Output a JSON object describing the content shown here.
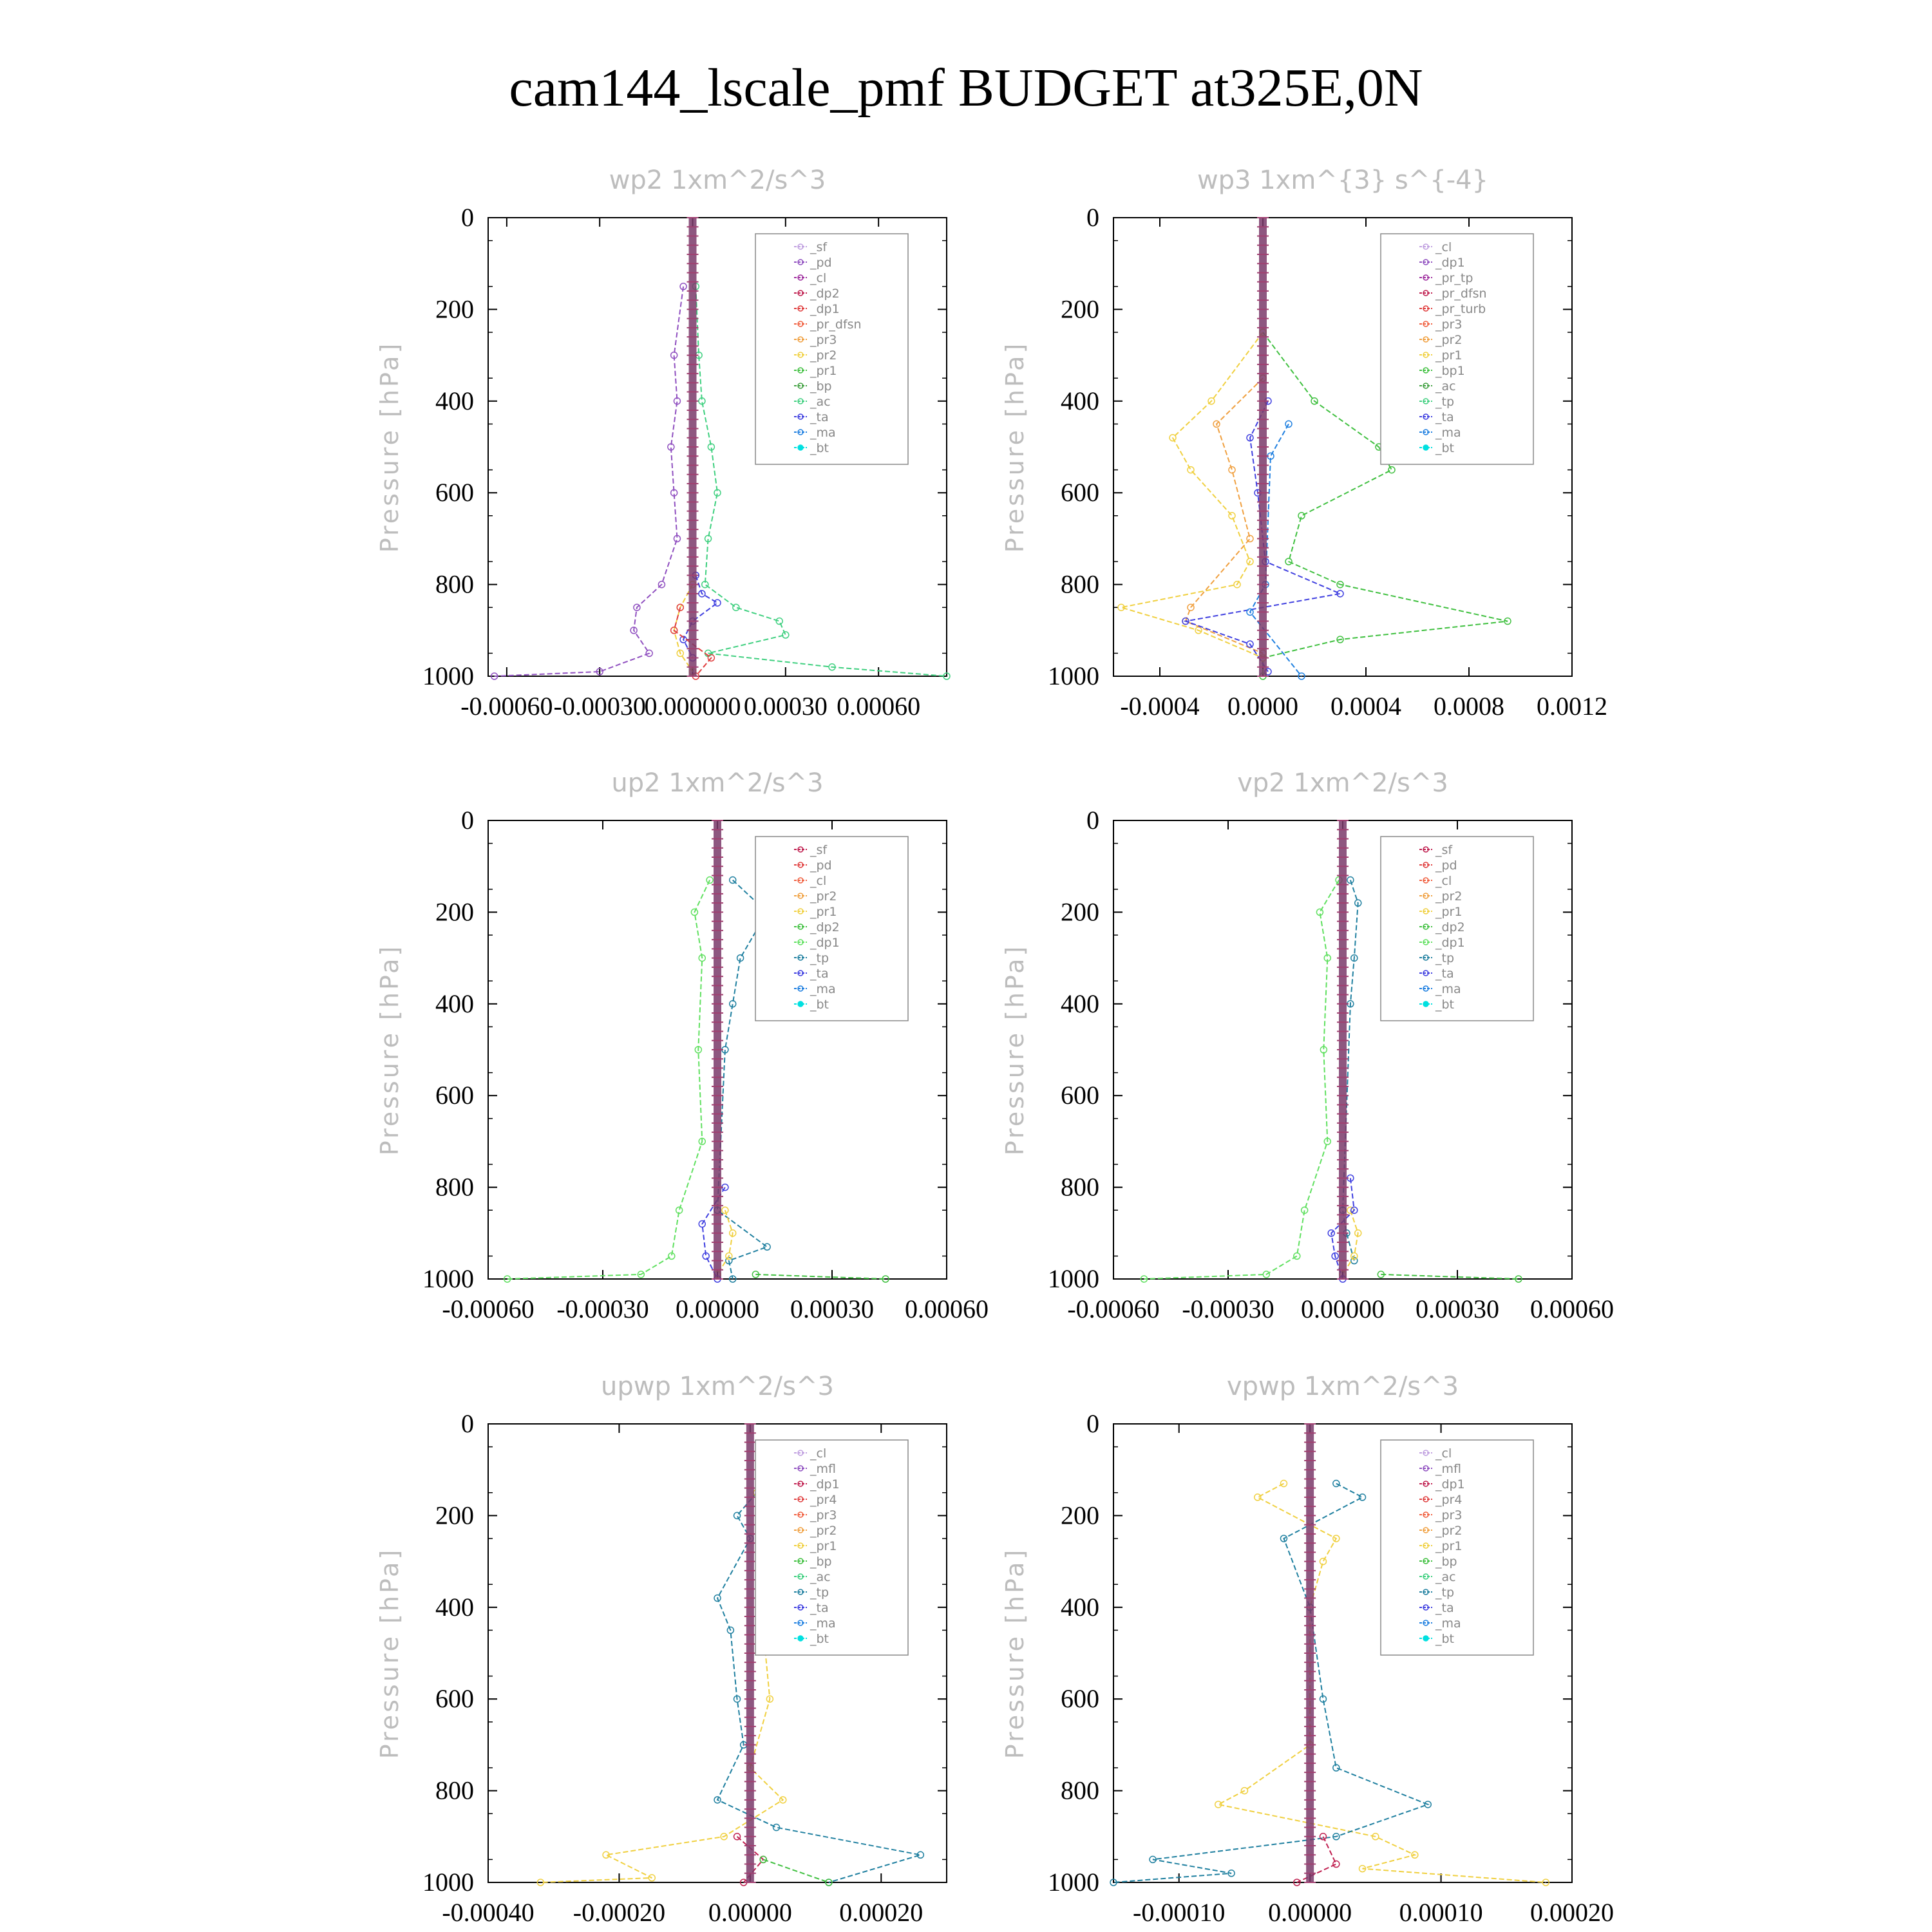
{
  "title": "cam144_lscale_pmf  BUDGET at325E,0N",
  "chart_data": [
    {
      "type": "line",
      "title": "wp2  1xm^2/s^3",
      "ylabel": "Pressure [hPa]",
      "ylim": [
        1000,
        0
      ],
      "xlim": [
        -0.00066,
        0.00082
      ],
      "xticks": [
        -0.0006,
        -0.0003,
        0.0,
        0.0003,
        0.0006
      ],
      "xtick_labels": [
        "-0.00060",
        "-0.00030",
        "0.000000",
        "0.00030",
        "0.00060"
      ],
      "yticks": [
        0,
        200,
        400,
        600,
        800,
        1000
      ],
      "legend": [
        "_sf",
        "_pd",
        "_cl",
        "_dp2",
        "_dp1",
        "_pr_dfsn",
        "_pr3",
        "_pr2",
        "_pr1",
        "_bp",
        "_ac",
        "_ta",
        "_ma",
        "_bt"
      ],
      "colors": [
        "#c0a0e0",
        "#9050c0",
        "#a030a0",
        "#c02050",
        "#e04040",
        "#f06040",
        "#f0a040",
        "#f0d040",
        "#40c040",
        "#40a040",
        "#40d080",
        "#4040e0",
        "#2080e0",
        "#00e0e0"
      ],
      "series": [
        {
          "name": "_pd",
          "p": [
            150,
            300,
            400,
            500,
            600,
            700,
            800,
            850,
            900,
            950,
            990,
            1000
          ],
          "x": [
            -3e-05,
            -6e-05,
            -5e-05,
            -7e-05,
            -6e-05,
            -5e-05,
            -0.0001,
            -0.00018,
            -0.00019,
            -0.00014,
            -0.0003,
            -0.00064
          ]
        },
        {
          "name": "_ac",
          "p": [
            150,
            300,
            400,
            500,
            600,
            700,
            800,
            850,
            880,
            910,
            950,
            980,
            1000
          ],
          "x": [
            1e-05,
            2e-05,
            3e-05,
            6e-05,
            8e-05,
            5e-05,
            4e-05,
            0.00014,
            0.00028,
            0.0003,
            5e-05,
            0.00045,
            0.00082
          ]
        },
        {
          "name": "_pr2",
          "p": [
            800,
            850,
            900,
            950,
            990
          ],
          "x": [
            0.0,
            -4e-05,
            -6e-05,
            -4e-05,
            0.0
          ]
        },
        {
          "name": "_ta",
          "p": [
            780,
            820,
            840,
            880,
            920,
            960
          ],
          "x": [
            1e-05,
            3e-05,
            8e-05,
            0.0,
            -3e-05,
            0.0
          ]
        },
        {
          "name": "_dp1",
          "p": [
            850,
            900,
            960,
            1000
          ],
          "x": [
            -4e-05,
            -6e-05,
            6e-05,
            1e-05
          ]
        }
      ]
    },
    {
      "type": "line",
      "title": "wp3  1xm^{3} s^{-4}",
      "ylabel": "Pressure [hPa]",
      "ylim": [
        1000,
        0
      ],
      "xlim": [
        -0.00058,
        0.0012
      ],
      "xticks": [
        -0.0004,
        0.0,
        0.0004,
        0.0008,
        0.0012
      ],
      "xtick_labels": [
        "-0.0004",
        "0.0000",
        "0.0004",
        "0.0008",
        "0.0012"
      ],
      "yticks": [
        0,
        200,
        400,
        600,
        800,
        1000
      ],
      "legend": [
        "_cl",
        "_dp1",
        "_pr_tp",
        "_pr_dfsn",
        "_pr_turb",
        "_pr3",
        "_pr2",
        "_pr1",
        "_bp1",
        "_ac",
        "_tp",
        "_ta",
        "_ma",
        "_bt"
      ],
      "colors": [
        "#c0a0e0",
        "#9050c0",
        "#a030a0",
        "#c02050",
        "#e04040",
        "#f06040",
        "#f0a040",
        "#f0d040",
        "#40c040",
        "#40a040",
        "#40d080",
        "#4040e0",
        "#2080e0",
        "#00e0e0"
      ],
      "series": [
        {
          "name": "_bp1",
          "p": [
            250,
            400,
            500,
            550,
            650,
            750,
            800,
            880,
            920,
            960,
            1000
          ],
          "x": [
            0.0,
            0.0002,
            0.00045,
            0.0005,
            0.00015,
            0.0001,
            0.0003,
            0.00095,
            0.0003,
            0.0,
            0.0
          ]
        },
        {
          "name": "_pr1",
          "p": [
            250,
            400,
            480,
            550,
            650,
            750,
            800,
            850,
            900,
            960
          ],
          "x": [
            0.0,
            -0.0002,
            -0.00035,
            -0.00028,
            -0.00012,
            -5e-05,
            -0.0001,
            -0.00055,
            -0.00025,
            0.0
          ]
        },
        {
          "name": "_pr2",
          "p": [
            350,
            450,
            550,
            700,
            850,
            880,
            950
          ],
          "x": [
            0.0,
            -0.00018,
            -0.00012,
            -5e-05,
            -0.00028,
            -0.0003,
            0.0
          ]
        },
        {
          "name": "_ta",
          "p": [
            400,
            480,
            600,
            750,
            820,
            880,
            930,
            990
          ],
          "x": [
            2e-05,
            -5e-05,
            -2e-05,
            1e-05,
            0.0003,
            -0.0003,
            -5e-05,
            2e-05
          ]
        },
        {
          "name": "_ma",
          "p": [
            450,
            520,
            800,
            860,
            1000
          ],
          "x": [
            0.0001,
            3e-05,
            1e-05,
            -5e-05,
            0.00015
          ]
        }
      ]
    },
    {
      "type": "line",
      "title": "up2  1xm^2/s^3",
      "ylabel": "Pressure [hPa]",
      "ylim": [
        1000,
        0
      ],
      "xlim": [
        -0.0006,
        0.0006
      ],
      "xticks": [
        -0.0006,
        -0.0003,
        0.0,
        0.0003,
        0.0006
      ],
      "xtick_labels": [
        "-0.00060",
        "-0.00030",
        "0.00000",
        "0.00030",
        "0.00060"
      ],
      "yticks": [
        0,
        200,
        400,
        600,
        800,
        1000
      ],
      "legend": [
        "_sf",
        "_pd",
        "_cl",
        "_pr2",
        "_pr1",
        "_dp2",
        "_dp1",
        "_tp",
        "_ta",
        "_ma",
        "_bt"
      ],
      "colors": [
        "#c02050",
        "#e04040",
        "#f06040",
        "#f0a040",
        "#f0d040",
        "#40c040",
        "#60e060",
        "#2080a0",
        "#4040e0",
        "#2080e0",
        "#00e0e0"
      ],
      "series": [
        {
          "name": "_dp1",
          "p": [
            130,
            200,
            300,
            500,
            700,
            850,
            950,
            990,
            1000
          ],
          "x": [
            -2e-05,
            -6e-05,
            -4e-05,
            -5e-05,
            -4e-05,
            -0.0001,
            -0.00012,
            -0.0002,
            -0.00055
          ]
        },
        {
          "name": "_tp",
          "p": [
            130,
            200,
            300,
            400,
            500,
            850,
            930,
            960,
            1000
          ],
          "x": [
            4e-05,
            0.00013,
            6e-05,
            4e-05,
            2e-05,
            0.0,
            0.00013,
            3e-05,
            4e-05
          ]
        },
        {
          "name": "_pr1",
          "p": [
            850,
            900,
            950,
            990
          ],
          "x": [
            2e-05,
            4e-05,
            3e-05,
            0.0
          ]
        },
        {
          "name": "_ta",
          "p": [
            800,
            880,
            950,
            1000
          ],
          "x": [
            2e-05,
            -4e-05,
            -3e-05,
            0.0
          ]
        },
        {
          "name": "_dp2",
          "p": [
            990,
            1000
          ],
          "x": [
            0.0001,
            0.00044
          ]
        }
      ]
    },
    {
      "type": "line",
      "title": "vp2  1xm^2/s^3",
      "ylabel": "Pressure [hPa]",
      "ylim": [
        1000,
        0
      ],
      "xlim": [
        -0.0006,
        0.0006
      ],
      "xticks": [
        -0.0006,
        -0.0003,
        0.0,
        0.0003,
        0.0006
      ],
      "xtick_labels": [
        "-0.00060",
        "-0.00030",
        "0.00000",
        "0.00030",
        "0.00060"
      ],
      "yticks": [
        0,
        200,
        400,
        600,
        800,
        1000
      ],
      "legend": [
        "_sf",
        "_pd",
        "_cl",
        "_pr2",
        "_pr1",
        "_dp2",
        "_dp1",
        "_tp",
        "_ta",
        "_ma",
        "_bt"
      ],
      "colors": [
        "#c02050",
        "#e04040",
        "#f06040",
        "#f0a040",
        "#f0d040",
        "#40c040",
        "#60e060",
        "#2080a0",
        "#4040e0",
        "#2080e0",
        "#00e0e0"
      ],
      "series": [
        {
          "name": "_dp1",
          "p": [
            130,
            200,
            300,
            500,
            700,
            850,
            950,
            990,
            1000
          ],
          "x": [
            -1e-05,
            -6e-05,
            -4e-05,
            -5e-05,
            -4e-05,
            -0.0001,
            -0.00012,
            -0.0002,
            -0.00052
          ]
        },
        {
          "name": "_tp",
          "p": [
            130,
            180,
            300,
            400,
            850,
            900,
            960
          ],
          "x": [
            2e-05,
            4e-05,
            3e-05,
            2e-05,
            0.0,
            1e-05,
            3e-05
          ]
        },
        {
          "name": "_pr1",
          "p": [
            850,
            900,
            950,
            990
          ],
          "x": [
            2e-05,
            4e-05,
            3e-05,
            0.0
          ]
        },
        {
          "name": "_ta",
          "p": [
            780,
            850,
            900,
            950,
            1000
          ],
          "x": [
            2e-05,
            3e-05,
            -3e-05,
            -2e-05,
            0.0
          ]
        },
        {
          "name": "_dp2",
          "p": [
            990,
            1000
          ],
          "x": [
            0.0001,
            0.00046
          ]
        }
      ]
    },
    {
      "type": "line",
      "title": "upwp  1xm^2/s^3",
      "ylabel": "Pressure [hPa]",
      "ylim": [
        1000,
        0
      ],
      "xlim": [
        -0.0004,
        0.0003
      ],
      "xticks": [
        -0.0004,
        -0.0002,
        0.0,
        0.0002
      ],
      "xtick_labels": [
        "-0.00040",
        "-0.00020",
        "0.00000",
        "0.00020"
      ],
      "yticks": [
        0,
        200,
        400,
        600,
        800,
        1000
      ],
      "legend": [
        "_cl",
        "_mfl",
        "_dp1",
        "_pr4",
        "_pr3",
        "_pr2",
        "_pr1",
        "_bp",
        "_ac",
        "_tp",
        "_ta",
        "_ma",
        "_bt"
      ],
      "colors": [
        "#c0a0e0",
        "#9050c0",
        "#c02050",
        "#e04040",
        "#f06040",
        "#f0a040",
        "#f0d040",
        "#40c040",
        "#40d080",
        "#2080a0",
        "#4040e0",
        "#2080e0",
        "#00e0e0"
      ],
      "series": [
        {
          "name": "_tp",
          "p": [
            150,
            200,
            250,
            380,
            450,
            600,
            700,
            820,
            880,
            940,
            1000
          ],
          "x": [
            1e-05,
            -2e-05,
            0.0,
            -5e-05,
            -3e-05,
            -2e-05,
            -1e-05,
            -5e-05,
            4e-05,
            0.00026,
            0.00012
          ]
        },
        {
          "name": "_pr1",
          "p": [
            150,
            250,
            350,
            450,
            600,
            750,
            820,
            900,
            940,
            990,
            1000
          ],
          "x": [
            1e-05,
            3e-05,
            4e-05,
            2e-05,
            3e-05,
            0.0,
            5e-05,
            -4e-05,
            -0.00022,
            -0.00015,
            -0.00032
          ]
        },
        {
          "name": "_dp1",
          "p": [
            900,
            950,
            1000
          ],
          "x": [
            -2e-05,
            2e-05,
            -1e-05
          ]
        },
        {
          "name": "_bp",
          "p": [
            950,
            1000
          ],
          "x": [
            2e-05,
            0.00012
          ]
        }
      ]
    },
    {
      "type": "line",
      "title": "vpwp  1xm^2/s^3",
      "ylabel": "Pressure [hPa]",
      "ylim": [
        1000,
        0
      ],
      "xlim": [
        -0.00015,
        0.0002
      ],
      "xticks": [
        -0.0001,
        0.0,
        0.0001,
        0.0002
      ],
      "xtick_labels": [
        "-0.00010",
        "0.00000",
        "0.00010",
        "0.00020"
      ],
      "yticks": [
        0,
        200,
        400,
        600,
        800,
        1000
      ],
      "legend": [
        "_cl",
        "_mfl",
        "_dp1",
        "_pr4",
        "_pr3",
        "_pr2",
        "_pr1",
        "_bp",
        "_ac",
        "_tp",
        "_ta",
        "_ma",
        "_bt"
      ],
      "colors": [
        "#c0a0e0",
        "#9050c0",
        "#c02050",
        "#e04040",
        "#f06040",
        "#f0a040",
        "#f0d040",
        "#40c040",
        "#40d080",
        "#2080a0",
        "#4040e0",
        "#2080e0",
        "#00e0e0"
      ],
      "series": [
        {
          "name": "_pr1",
          "p": [
            130,
            160,
            250,
            300,
            400,
            700,
            800,
            830,
            900,
            940,
            970,
            1000
          ],
          "x": [
            -2e-05,
            -4e-05,
            2e-05,
            1e-05,
            0.0,
            0.0,
            -5e-05,
            -7e-05,
            5e-05,
            8e-05,
            4e-05,
            0.00018
          ]
        },
        {
          "name": "_tp",
          "p": [
            130,
            160,
            250,
            400,
            600,
            750,
            830,
            900,
            950,
            980,
            1000
          ],
          "x": [
            2e-05,
            4e-05,
            -2e-05,
            0.0,
            1e-05,
            2e-05,
            9e-05,
            2e-05,
            -0.00012,
            -6e-05,
            -0.00015
          ]
        },
        {
          "name": "_dp1",
          "p": [
            900,
            960,
            1000
          ],
          "x": [
            1e-05,
            2e-05,
            -1e-05
          ]
        }
      ]
    }
  ]
}
